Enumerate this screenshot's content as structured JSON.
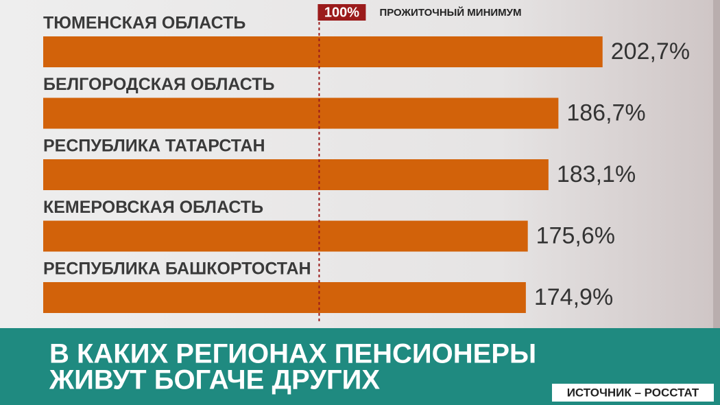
{
  "chart_data": {
    "type": "barh",
    "title": [
      "В КАКИХ РЕГИОНАХ ПЕНСИОНЕРЫ",
      "ЖИВУТ БОГАЧЕ ДРУГИХ"
    ],
    "source": "ИСТОЧНИК – РОССТАТ",
    "categories": [
      "ТЮМЕНСКАЯ ОБЛАСТЬ",
      "БЕЛГОРОДСКАЯ ОБЛАСТЬ",
      "РЕСПУБЛИКА ТАТАРСТАН",
      "КЕМЕРОВСКАЯ ОБЛАСТЬ",
      "РЕСПУБЛИКА БАШКОРТОСТАН"
    ],
    "values": [
      202.7,
      186.7,
      183.1,
      175.6,
      174.9
    ],
    "value_labels": [
      "202,7%",
      "186,7%",
      "183,1%",
      "175,6%",
      "174,9%"
    ],
    "color": "#d2620a",
    "xlim": [
      0,
      205
    ],
    "reference_line": {
      "value": 100,
      "label": "100%",
      "text": "ПРОЖИТОЧНЫЙ МИНИМУМ",
      "color": "#9b1b1b"
    }
  }
}
